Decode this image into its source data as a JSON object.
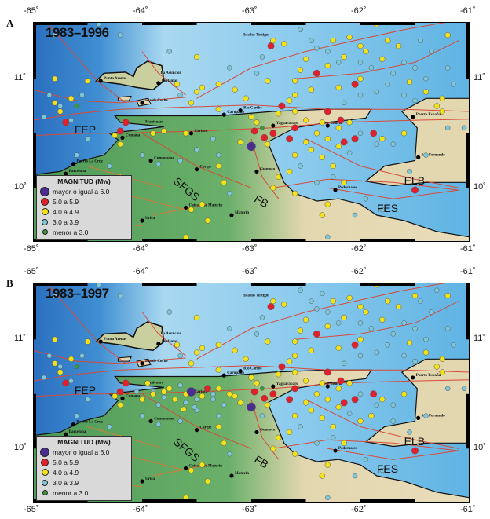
{
  "panels": [
    {
      "letter": "A",
      "period": "1983–1996"
    },
    {
      "letter": "B",
      "period": "1983–1997"
    }
  ],
  "axes": {
    "lon_labels": [
      "-65˚",
      "-64˚",
      "-63˚",
      "-62˚",
      "-61˚"
    ],
    "lon_values": [
      -65,
      -64,
      -63,
      -62,
      -61
    ],
    "lat_labels": [
      "11˚",
      "10˚"
    ],
    "lat_values": [
      11,
      10
    ]
  },
  "legend": {
    "title": "MAGNITUD (Mw)",
    "items": [
      {
        "label": "mayor o igual a 6.0",
        "color": "#4b2d8f",
        "class": 6
      },
      {
        "label": "5.0 a 5.9",
        "color": "#e0202a",
        "class": 5
      },
      {
        "label": "4.0 a 4.9",
        "color": "#f2e21a",
        "class": 4
      },
      {
        "label": "3.0 a 3.9",
        "color": "#7cc6d8",
        "class": 3
      },
      {
        "label": "menor a 3.0",
        "color": "#3a9a3a",
        "class": 2
      }
    ]
  },
  "fault_labels": [
    {
      "text": "FEP",
      "lon": -64.62,
      "lat": 10.5
    },
    {
      "text": "SFGS",
      "lon": -63.72,
      "lat": 10.05
    },
    {
      "text": "FB",
      "lon": -62.98,
      "lat": 9.88
    },
    {
      "text": "ELB",
      "lon": -61.6,
      "lat": 10.03
    },
    {
      "text": "FES",
      "lon": -61.85,
      "lat": 9.78
    }
  ],
  "cities": [
    {
      "name": "La Asuncion",
      "lon": -63.86,
      "lat": 11.03,
      "dot": false
    },
    {
      "name": "Porlamar",
      "lon": -63.85,
      "lat": 10.96,
      "dot": true
    },
    {
      "name": "Punta Arenas",
      "lon": -64.38,
      "lat": 10.98,
      "dot": true
    },
    {
      "name": "Isla de Coche",
      "lon": -64.0,
      "lat": 10.78,
      "dot": true
    },
    {
      "name": "Isla los Testigos",
      "lon": -63.1,
      "lat": 11.38,
      "dot": false
    },
    {
      "name": "Carupano",
      "lon": -63.25,
      "lat": 10.67,
      "dot": true
    },
    {
      "name": "Rio Caribe",
      "lon": -63.1,
      "lat": 10.71,
      "dot": true
    },
    {
      "name": "Cumana",
      "lon": -64.18,
      "lat": 10.46,
      "dot": true
    },
    {
      "name": "Manicuare",
      "lon": -64.0,
      "lat": 10.58,
      "dot": false
    },
    {
      "name": "Cariaco",
      "lon": -63.55,
      "lat": 10.5,
      "dot": true
    },
    {
      "name": "Yaguaraparo",
      "lon": -62.8,
      "lat": 10.57,
      "dot": true
    },
    {
      "name": "Guiria",
      "lon": -62.3,
      "lat": 10.57,
      "dot": true
    },
    {
      "name": "Puerto España",
      "lon": -61.52,
      "lat": 10.65,
      "dot": true
    },
    {
      "name": "San Fernando",
      "lon": -61.47,
      "lat": 10.28,
      "dot": true
    },
    {
      "name": "Puerto La Cruz",
      "lon": -64.63,
      "lat": 10.22,
      "dot": true
    },
    {
      "name": "Barcelona",
      "lon": -64.7,
      "lat": 10.13,
      "dot": true
    },
    {
      "name": "Cumanacoa",
      "lon": -63.92,
      "lat": 10.25,
      "dot": true
    },
    {
      "name": "Caripe",
      "lon": -63.5,
      "lat": 10.17,
      "dot": true
    },
    {
      "name": "Guanoco",
      "lon": -62.95,
      "lat": 10.15,
      "dot": true
    },
    {
      "name": "Pedernales",
      "lon": -62.23,
      "lat": 9.98,
      "dot": true
    },
    {
      "name": "Caicara de Maturin",
      "lon": -63.6,
      "lat": 9.82,
      "dot": true
    },
    {
      "name": "Maturin",
      "lon": -63.18,
      "lat": 9.75,
      "dot": true
    },
    {
      "name": "Urica",
      "lon": -64.0,
      "lat": 9.7,
      "dot": true
    }
  ],
  "events_1983_1996": [
    [
      -63.0,
      10.38,
      6
    ],
    [
      -62.82,
      11.3,
      5
    ],
    [
      -62.4,
      11.05,
      5
    ],
    [
      -62.05,
      10.95,
      5
    ],
    [
      -62.72,
      10.75,
      5
    ],
    [
      -62.3,
      10.7,
      5
    ],
    [
      -62.8,
      10.5,
      5
    ],
    [
      -62.88,
      10.46,
      5
    ],
    [
      -62.97,
      10.52,
      5
    ],
    [
      -64.15,
      10.6,
      5
    ],
    [
      -64.2,
      10.52,
      5
    ],
    [
      -64.7,
      10.6,
      5
    ],
    [
      -61.88,
      10.5,
      5
    ],
    [
      -62.6,
      10.55,
      5
    ],
    [
      -62.05,
      10.45,
      5
    ],
    [
      -62.15,
      10.42,
      5
    ],
    [
      -61.5,
      9.98,
      5
    ],
    [
      -62.18,
      10.62,
      5
    ],
    [
      -62.65,
      10.45,
      5
    ],
    [
      -62.9,
      11.58,
      4
    ],
    [
      -62.7,
      11.52,
      4
    ],
    [
      -62.2,
      11.6,
      4
    ],
    [
      -61.85,
      11.5,
      4
    ],
    [
      -61.6,
      11.55,
      4
    ],
    [
      -61.3,
      11.55,
      4
    ],
    [
      -61.2,
      11.4,
      4
    ],
    [
      -62.8,
      11.35,
      4
    ],
    [
      -62.7,
      11.32,
      4
    ],
    [
      -62.5,
      11.18,
      4
    ],
    [
      -62.25,
      11.35,
      4
    ],
    [
      -62.1,
      11.38,
      4
    ],
    [
      -62.0,
      11.3,
      4
    ],
    [
      -61.95,
      11.25,
      4
    ],
    [
      -61.75,
      11.35,
      4
    ],
    [
      -61.65,
      11.3,
      4
    ],
    [
      -61.8,
      11.18,
      4
    ],
    [
      -62.15,
      11.2,
      4
    ],
    [
      -62.3,
      11.12,
      4
    ],
    [
      -62.55,
      11.08,
      4
    ],
    [
      -62.6,
      10.98,
      4
    ],
    [
      -62.45,
      10.9,
      4
    ],
    [
      -62.6,
      10.85,
      4
    ],
    [
      -62.65,
      10.8,
      4
    ],
    [
      -62.2,
      10.92,
      4
    ],
    [
      -62.0,
      11.0,
      4
    ],
    [
      -61.55,
      10.97,
      4
    ],
    [
      -61.4,
      10.88,
      4
    ],
    [
      -61.25,
      10.82,
      4
    ],
    [
      -61.3,
      10.75,
      4
    ],
    [
      -62.85,
      10.98,
      4
    ],
    [
      -63.3,
      10.95,
      4
    ],
    [
      -63.15,
      10.9,
      4
    ],
    [
      -63.05,
      10.82,
      4
    ],
    [
      -62.75,
      10.68,
      4
    ],
    [
      -62.6,
      10.7,
      4
    ],
    [
      -62.5,
      10.62,
      4
    ],
    [
      -62.35,
      10.6,
      4
    ],
    [
      -62.2,
      10.55,
      4
    ],
    [
      -62.1,
      10.6,
      4
    ],
    [
      -62.4,
      10.5,
      4
    ],
    [
      -62.3,
      10.45,
      4
    ],
    [
      -62.5,
      10.42,
      4
    ],
    [
      -62.2,
      10.38,
      4
    ],
    [
      -62.45,
      10.35,
      4
    ],
    [
      -62.6,
      10.3,
      4
    ],
    [
      -62.35,
      10.28,
      4
    ],
    [
      -62.25,
      10.2,
      4
    ],
    [
      -62.65,
      10.15,
      4
    ],
    [
      -62.75,
      10.1,
      4
    ],
    [
      -62.8,
      10.0,
      4
    ],
    [
      -62.6,
      9.95,
      4
    ],
    [
      -62.3,
      9.85,
      4
    ],
    [
      -62.35,
      9.75,
      4
    ],
    [
      -63.3,
      10.2,
      4
    ],
    [
      -63.25,
      10.05,
      4
    ],
    [
      -63.45,
      9.85,
      4
    ],
    [
      -63.4,
      9.7,
      4
    ],
    [
      -63.55,
      9.8,
      4
    ],
    [
      -64.2,
      10.4,
      4
    ],
    [
      -64.25,
      10.48,
      4
    ],
    [
      -64.5,
      10.98,
      4
    ],
    [
      -64.65,
      10.82,
      4
    ],
    [
      -64.8,
      10.78,
      4
    ],
    [
      -64.75,
      10.7,
      4
    ],
    [
      -64.8,
      11.0,
      4
    ],
    [
      -63.5,
      11.2,
      4
    ],
    [
      -63.68,
      10.95,
      4
    ],
    [
      -63.45,
      10.92,
      4
    ],
    [
      -63.5,
      10.88,
      4
    ],
    [
      -63.55,
      10.78,
      4
    ],
    [
      -63.3,
      10.72,
      4
    ],
    [
      -63.6,
      10.5,
      4
    ],
    [
      -63.9,
      10.5,
      4
    ],
    [
      -63.8,
      10.52,
      4
    ],
    [
      -63.1,
      10.42,
      4
    ],
    [
      -62.95,
      10.6,
      4
    ],
    [
      -63.0,
      10.65,
      4
    ],
    [
      -61.25,
      10.7,
      4
    ],
    [
      -61.6,
      10.5,
      4
    ],
    [
      -61.8,
      10.45,
      4
    ],
    [
      -62.85,
      10.4,
      4
    ],
    [
      -62.15,
      10.05,
      4
    ],
    [
      -63.6,
      9.55,
      4
    ],
    [
      -64.2,
      10.1,
      4
    ],
    [
      -64.4,
      11.5,
      3
    ],
    [
      -64.2,
      11.4,
      3
    ],
    [
      -64.8,
      11.4,
      3
    ],
    [
      -64.55,
      10.85,
      3
    ],
    [
      -64.85,
      10.85,
      3
    ],
    [
      -64.75,
      10.75,
      3
    ],
    [
      -64.9,
      10.65,
      3
    ],
    [
      -64.65,
      10.62,
      3
    ],
    [
      -63.75,
      11.25,
      3
    ],
    [
      -63.65,
      10.85,
      3
    ],
    [
      -62.45,
      11.35,
      3
    ],
    [
      -62.4,
      11.28,
      3
    ],
    [
      -62.3,
      11.25,
      3
    ],
    [
      -62.2,
      11.15,
      3
    ],
    [
      -62.0,
      11.15,
      3
    ],
    [
      -61.9,
      11.1,
      3
    ],
    [
      -61.7,
      11.05,
      3
    ],
    [
      -61.6,
      11.15,
      3
    ],
    [
      -61.5,
      11.1,
      3
    ],
    [
      -61.4,
      11.0,
      3
    ],
    [
      -61.75,
      10.95,
      3
    ],
    [
      -61.85,
      10.88,
      3
    ],
    [
      -62.0,
      10.85,
      3
    ],
    [
      -62.15,
      10.78,
      3
    ],
    [
      -61.6,
      10.85,
      3
    ],
    [
      -61.5,
      10.8,
      3
    ],
    [
      -61.35,
      11.25,
      3
    ],
    [
      -61.2,
      11.1,
      3
    ],
    [
      -61.15,
      10.95,
      3
    ],
    [
      -61.45,
      11.35,
      3
    ],
    [
      -62.55,
      11.45,
      3
    ],
    [
      -62.9,
      11.2,
      3
    ],
    [
      -62.95,
      11.05,
      3
    ],
    [
      -63.2,
      11.1,
      3
    ],
    [
      -62.0,
      10.5,
      3
    ],
    [
      -62.1,
      10.32,
      3
    ],
    [
      -62.25,
      10.1,
      3
    ],
    [
      -62.4,
      10.05,
      3
    ],
    [
      -62.55,
      10.2,
      3
    ],
    [
      -61.85,
      10.4,
      3
    ],
    [
      -61.7,
      10.4,
      3
    ],
    [
      -61.4,
      10.3,
      3
    ],
    [
      -61.55,
      10.15,
      3
    ],
    [
      -61.2,
      10.55,
      3
    ],
    [
      -61.05,
      10.55,
      3
    ],
    [
      -63.35,
      10.45,
      3
    ],
    [
      -63.5,
      10.35,
      3
    ],
    [
      -63.65,
      10.25,
      3
    ],
    [
      -63.3,
      10.3,
      3
    ],
    [
      -64.6,
      10.3,
      3
    ],
    [
      -64.3,
      10.2,
      3
    ],
    [
      -64.0,
      10.3,
      3
    ],
    [
      -63.85,
      10.22,
      3
    ],
    [
      -63.2,
      9.95,
      3
    ],
    [
      -62.3,
      9.55,
      3
    ],
    [
      -61.95,
      9.9,
      3
    ],
    [
      -61.8,
      9.8,
      3
    ],
    [
      -62.05,
      9.75,
      3
    ],
    [
      -64.5,
      10.45,
      3
    ],
    [
      -64.6,
      10.75,
      2
    ],
    [
      -62.9,
      10.55,
      2
    ]
  ],
  "events_1997_added": [
    [
      -63.55,
      10.52,
      6
    ],
    [
      -63.4,
      10.55,
      5
    ],
    [
      -63.7,
      10.45,
      4
    ],
    [
      -63.6,
      10.42,
      3
    ],
    [
      -63.5,
      10.45,
      3
    ],
    [
      -63.45,
      10.48,
      4
    ],
    [
      -63.8,
      10.47,
      3
    ],
    [
      -63.75,
      10.55,
      4
    ],
    [
      -63.35,
      10.5,
      3
    ],
    [
      -63.3,
      10.55,
      4
    ],
    [
      -63.65,
      10.58,
      3
    ],
    [
      -63.2,
      10.5,
      4
    ],
    [
      -63.9,
      10.52,
      3
    ],
    [
      -64.0,
      10.45,
      4
    ],
    [
      -63.25,
      10.4,
      3
    ],
    [
      -63.15,
      10.48,
      4
    ],
    [
      -63.52,
      10.38,
      3
    ],
    [
      -63.62,
      10.36,
      4
    ],
    [
      -61.3,
      11.45,
      3
    ],
    [
      -61.5,
      11.4,
      4
    ],
    [
      -62.35,
      11.42,
      3
    ],
    [
      -61.9,
      10.3,
      4
    ],
    [
      -62.0,
      10.25,
      4
    ],
    [
      -61.7,
      10.25,
      3
    ],
    [
      -62.9,
      10.3,
      3
    ],
    [
      -63.85,
      10.4,
      3
    ],
    [
      -63.95,
      10.6,
      4
    ],
    [
      -64.05,
      10.52,
      3
    ]
  ],
  "colors": {
    "sea": "#5fb3e3",
    "deep_sea": "#2b6fbf",
    "land_green": "#4e9a58",
    "land_tan": "#e3d7b0",
    "fault": "#d84a3a"
  }
}
